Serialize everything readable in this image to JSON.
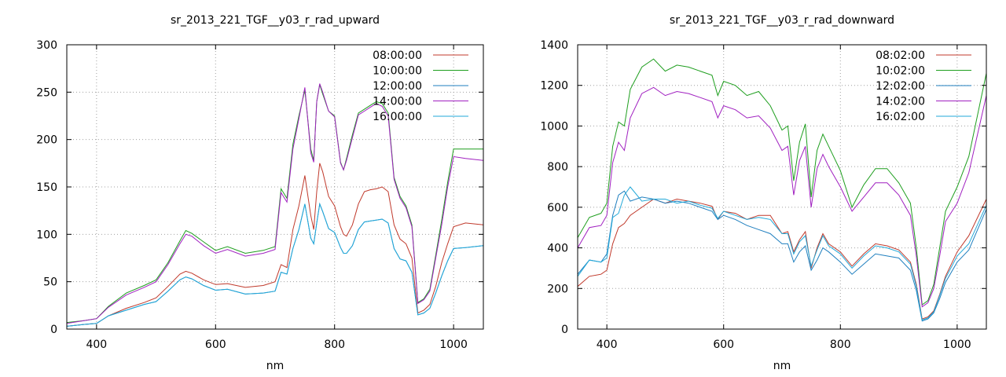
{
  "colors": {
    "series_1": "#c0392b",
    "series_2": "#1e9e1e",
    "series_3": "#1f7fbf",
    "series_4": "#a020c0",
    "series_5": "#22a8d8"
  },
  "chart_data": [
    {
      "type": "line",
      "title": "sr_2013_221_TGF__y03_r_rad_upward",
      "xlabel": "nm",
      "ylabel": "",
      "xlim": [
        350,
        1050
      ],
      "ylim": [
        0,
        300
      ],
      "xticks": [
        400,
        600,
        800,
        1000
      ],
      "yticks": [
        0,
        50,
        100,
        150,
        200,
        250,
        300
      ],
      "grid": true,
      "legend_position": "top-right",
      "series": [
        {
          "name": "08:00:00",
          "color": "#c0392b",
          "x": [
            350,
            380,
            400,
            420,
            450,
            480,
            500,
            520,
            540,
            550,
            560,
            580,
            600,
            620,
            650,
            680,
            700,
            710,
            720,
            730,
            740,
            750,
            760,
            765,
            770,
            775,
            780,
            790,
            800,
            810,
            815,
            820,
            830,
            840,
            850,
            860,
            870,
            880,
            890,
            900,
            910,
            920,
            930,
            940,
            950,
            960,
            970,
            980,
            990,
            1000,
            1020,
            1050
          ],
          "y": [
            3,
            5,
            6,
            14,
            22,
            28,
            33,
            45,
            58,
            61,
            59,
            52,
            47,
            48,
            44,
            46,
            50,
            68,
            65,
            105,
            130,
            162,
            120,
            105,
            145,
            175,
            166,
            140,
            130,
            108,
            100,
            98,
            110,
            132,
            145,
            147,
            148,
            150,
            145,
            110,
            95,
            90,
            75,
            17,
            20,
            26,
            45,
            70,
            90,
            108,
            112,
            110
          ]
        },
        {
          "name": "10:00:00",
          "color": "#1e9e1e",
          "x": [
            350,
            380,
            400,
            420,
            450,
            480,
            500,
            520,
            540,
            550,
            560,
            580,
            600,
            620,
            650,
            680,
            700,
            710,
            720,
            730,
            740,
            750,
            760,
            765,
            770,
            775,
            780,
            790,
            800,
            810,
            815,
            820,
            830,
            840,
            850,
            860,
            870,
            880,
            890,
            900,
            910,
            920,
            930,
            940,
            950,
            960,
            970,
            980,
            990,
            1000,
            1020,
            1050
          ],
          "y": [
            7,
            9,
            11,
            24,
            38,
            46,
            52,
            70,
            93,
            104,
            101,
            92,
            83,
            87,
            80,
            83,
            87,
            148,
            138,
            195,
            225,
            252,
            190,
            178,
            240,
            258,
            248,
            230,
            225,
            176,
            168,
            180,
            205,
            228,
            232,
            236,
            240,
            238,
            228,
            160,
            140,
            130,
            110,
            28,
            32,
            42,
            78,
            115,
            155,
            190,
            190,
            190
          ]
        },
        {
          "name": "12:00:00",
          "color": "#1f7fbf",
          "x": [
            350,
            380,
            400,
            420,
            450,
            480,
            500,
            520,
            540,
            550,
            560,
            580,
            600,
            620,
            650,
            680,
            700,
            710,
            720,
            730,
            740,
            750,
            760,
            765,
            770,
            775,
            780,
            790,
            800,
            810,
            815,
            820,
            830,
            840,
            850,
            860,
            870,
            880,
            890,
            900,
            910,
            920,
            930,
            940,
            950,
            960,
            970,
            980,
            990,
            1000,
            1020,
            1050
          ],
          "y": [
            3,
            5,
            6,
            14,
            20,
            26,
            29,
            40,
            52,
            55,
            53,
            46,
            41,
            42,
            37,
            38,
            40,
            60,
            58,
            85,
            105,
            132,
            96,
            90,
            112,
            132,
            124,
            106,
            102,
            86,
            80,
            80,
            88,
            105,
            113,
            114,
            115,
            116,
            112,
            85,
            74,
            72,
            60,
            15,
            17,
            22,
            38,
            56,
            72,
            85,
            86,
            88
          ]
        },
        {
          "name": "14:00:00",
          "color": "#a020c0",
          "x": [
            350,
            380,
            400,
            420,
            450,
            480,
            500,
            520,
            540,
            550,
            560,
            580,
            600,
            620,
            650,
            680,
            700,
            710,
            720,
            730,
            740,
            750,
            760,
            765,
            770,
            775,
            780,
            790,
            800,
            810,
            815,
            820,
            830,
            840,
            850,
            860,
            870,
            880,
            890,
            900,
            910,
            920,
            930,
            940,
            950,
            960,
            970,
            980,
            990,
            1000,
            1020,
            1050
          ],
          "y": [
            6,
            9,
            11,
            23,
            36,
            44,
            50,
            68,
            90,
            100,
            98,
            88,
            80,
            84,
            77,
            80,
            84,
            144,
            134,
            190,
            222,
            255,
            186,
            176,
            240,
            259,
            250,
            230,
            224,
            175,
            168,
            178,
            202,
            226,
            230,
            234,
            238,
            235,
            225,
            158,
            138,
            128,
            108,
            27,
            31,
            40,
            75,
            110,
            150,
            182,
            180,
            178
          ]
        },
        {
          "name": "16:00:00",
          "color": "#22a8d8",
          "x": [
            350,
            380,
            400,
            420,
            450,
            480,
            500,
            520,
            540,
            550,
            560,
            580,
            600,
            620,
            650,
            680,
            700,
            710,
            720,
            730,
            740,
            750,
            760,
            765,
            770,
            775,
            780,
            790,
            800,
            810,
            815,
            820,
            830,
            840,
            850,
            860,
            870,
            880,
            890,
            900,
            910,
            920,
            930,
            940,
            950,
            960,
            970,
            980,
            990,
            1000,
            1020,
            1050
          ],
          "y": [
            3,
            5,
            6,
            14,
            20,
            26,
            29,
            40,
            52,
            55,
            53,
            46,
            41,
            42,
            37,
            38,
            40,
            60,
            58,
            85,
            105,
            132,
            96,
            90,
            112,
            132,
            124,
            106,
            102,
            86,
            80,
            80,
            88,
            105,
            113,
            114,
            115,
            116,
            112,
            85,
            74,
            72,
            60,
            15,
            17,
            22,
            38,
            56,
            72,
            85,
            86,
            88
          ]
        }
      ]
    },
    {
      "type": "line",
      "title": "sr_2013_221_TGF__y03_r_rad_downward",
      "xlabel": "nm",
      "ylabel": "",
      "xlim": [
        350,
        1050
      ],
      "ylim": [
        0,
        1400
      ],
      "xticks": [
        400,
        600,
        800,
        1000
      ],
      "yticks": [
        0,
        200,
        400,
        600,
        800,
        1000,
        1200,
        1400
      ],
      "grid": true,
      "legend_position": "top-right",
      "series": [
        {
          "name": "08:02:00",
          "color": "#c0392b",
          "x": [
            350,
            370,
            390,
            400,
            410,
            420,
            430,
            440,
            460,
            480,
            500,
            520,
            540,
            560,
            580,
            590,
            600,
            620,
            640,
            660,
            680,
            700,
            710,
            720,
            730,
            740,
            750,
            760,
            770,
            780,
            800,
            820,
            840,
            860,
            880,
            900,
            920,
            930,
            940,
            950,
            960,
            970,
            980,
            1000,
            1020,
            1050
          ],
          "y": [
            210,
            260,
            270,
            290,
            420,
            500,
            520,
            560,
            600,
            640,
            620,
            640,
            630,
            620,
            605,
            540,
            580,
            570,
            540,
            560,
            560,
            470,
            480,
            380,
            440,
            480,
            300,
            400,
            470,
            420,
            380,
            310,
            370,
            420,
            410,
            390,
            330,
            220,
            50,
            60,
            90,
            170,
            260,
            380,
            460,
            640
          ]
        },
        {
          "name": "10:02:00",
          "color": "#1e9e1e",
          "x": [
            350,
            370,
            390,
            400,
            410,
            420,
            430,
            440,
            460,
            480,
            500,
            520,
            540,
            560,
            580,
            590,
            600,
            620,
            640,
            660,
            680,
            700,
            710,
            720,
            730,
            740,
            750,
            760,
            770,
            780,
            800,
            820,
            840,
            860,
            880,
            900,
            920,
            930,
            940,
            950,
            960,
            970,
            980,
            1000,
            1020,
            1050
          ],
          "y": [
            450,
            550,
            570,
            620,
            900,
            1020,
            1000,
            1180,
            1290,
            1330,
            1270,
            1300,
            1290,
            1270,
            1250,
            1150,
            1220,
            1200,
            1150,
            1170,
            1100,
            980,
            1000,
            730,
            920,
            1010,
            650,
            880,
            960,
            900,
            780,
            600,
            710,
            790,
            790,
            720,
            620,
            400,
            120,
            140,
            220,
            400,
            580,
            700,
            850,
            1260
          ]
        },
        {
          "name": "12:02:00",
          "color": "#1f7fbf",
          "x": [
            350,
            370,
            390,
            400,
            410,
            420,
            430,
            440,
            460,
            480,
            500,
            520,
            540,
            560,
            580,
            590,
            600,
            620,
            640,
            660,
            680,
            700,
            710,
            720,
            730,
            740,
            750,
            760,
            770,
            780,
            800,
            820,
            840,
            860,
            880,
            900,
            920,
            930,
            940,
            950,
            960,
            970,
            980,
            1000,
            1020,
            1050
          ],
          "y": [
            270,
            340,
            330,
            370,
            560,
            660,
            680,
            630,
            650,
            640,
            620,
            630,
            620,
            600,
            580,
            540,
            560,
            540,
            510,
            490,
            470,
            420,
            420,
            330,
            380,
            410,
            290,
            340,
            400,
            380,
            330,
            270,
            320,
            370,
            360,
            350,
            290,
            190,
            40,
            50,
            80,
            150,
            230,
            330,
            390,
            590
          ]
        },
        {
          "name": "14:02:00",
          "color": "#a020c0",
          "x": [
            350,
            370,
            390,
            400,
            410,
            420,
            430,
            440,
            460,
            480,
            500,
            520,
            540,
            560,
            580,
            590,
            600,
            620,
            640,
            660,
            680,
            700,
            710,
            720,
            730,
            740,
            750,
            760,
            770,
            780,
            800,
            820,
            840,
            860,
            880,
            900,
            920,
            930,
            940,
            950,
            960,
            970,
            980,
            1000,
            1020,
            1050
          ],
          "y": [
            400,
            500,
            510,
            560,
            820,
            920,
            880,
            1040,
            1160,
            1190,
            1150,
            1170,
            1160,
            1140,
            1120,
            1040,
            1100,
            1080,
            1040,
            1050,
            990,
            880,
            900,
            660,
            830,
            900,
            600,
            790,
            860,
            800,
            700,
            580,
            650,
            720,
            720,
            660,
            560,
            360,
            110,
            130,
            200,
            360,
            530,
            620,
            770,
            1150
          ]
        },
        {
          "name": "16:02:00",
          "color": "#22a8d8",
          "x": [
            350,
            370,
            390,
            400,
            410,
            420,
            430,
            440,
            460,
            480,
            500,
            520,
            540,
            560,
            580,
            590,
            600,
            620,
            640,
            660,
            680,
            700,
            710,
            720,
            730,
            740,
            750,
            760,
            770,
            780,
            800,
            820,
            840,
            860,
            880,
            900,
            920,
            930,
            940,
            950,
            960,
            970,
            980,
            1000,
            1020,
            1050
          ],
          "y": [
            260,
            340,
            330,
            350,
            550,
            570,
            660,
            700,
            630,
            640,
            640,
            620,
            630,
            610,
            595,
            545,
            580,
            560,
            540,
            550,
            540,
            470,
            470,
            370,
            430,
            460,
            310,
            390,
            460,
            410,
            370,
            300,
            360,
            410,
            400,
            380,
            320,
            210,
            45,
            55,
            85,
            165,
            250,
            360,
            420,
            610
          ]
        }
      ]
    }
  ]
}
